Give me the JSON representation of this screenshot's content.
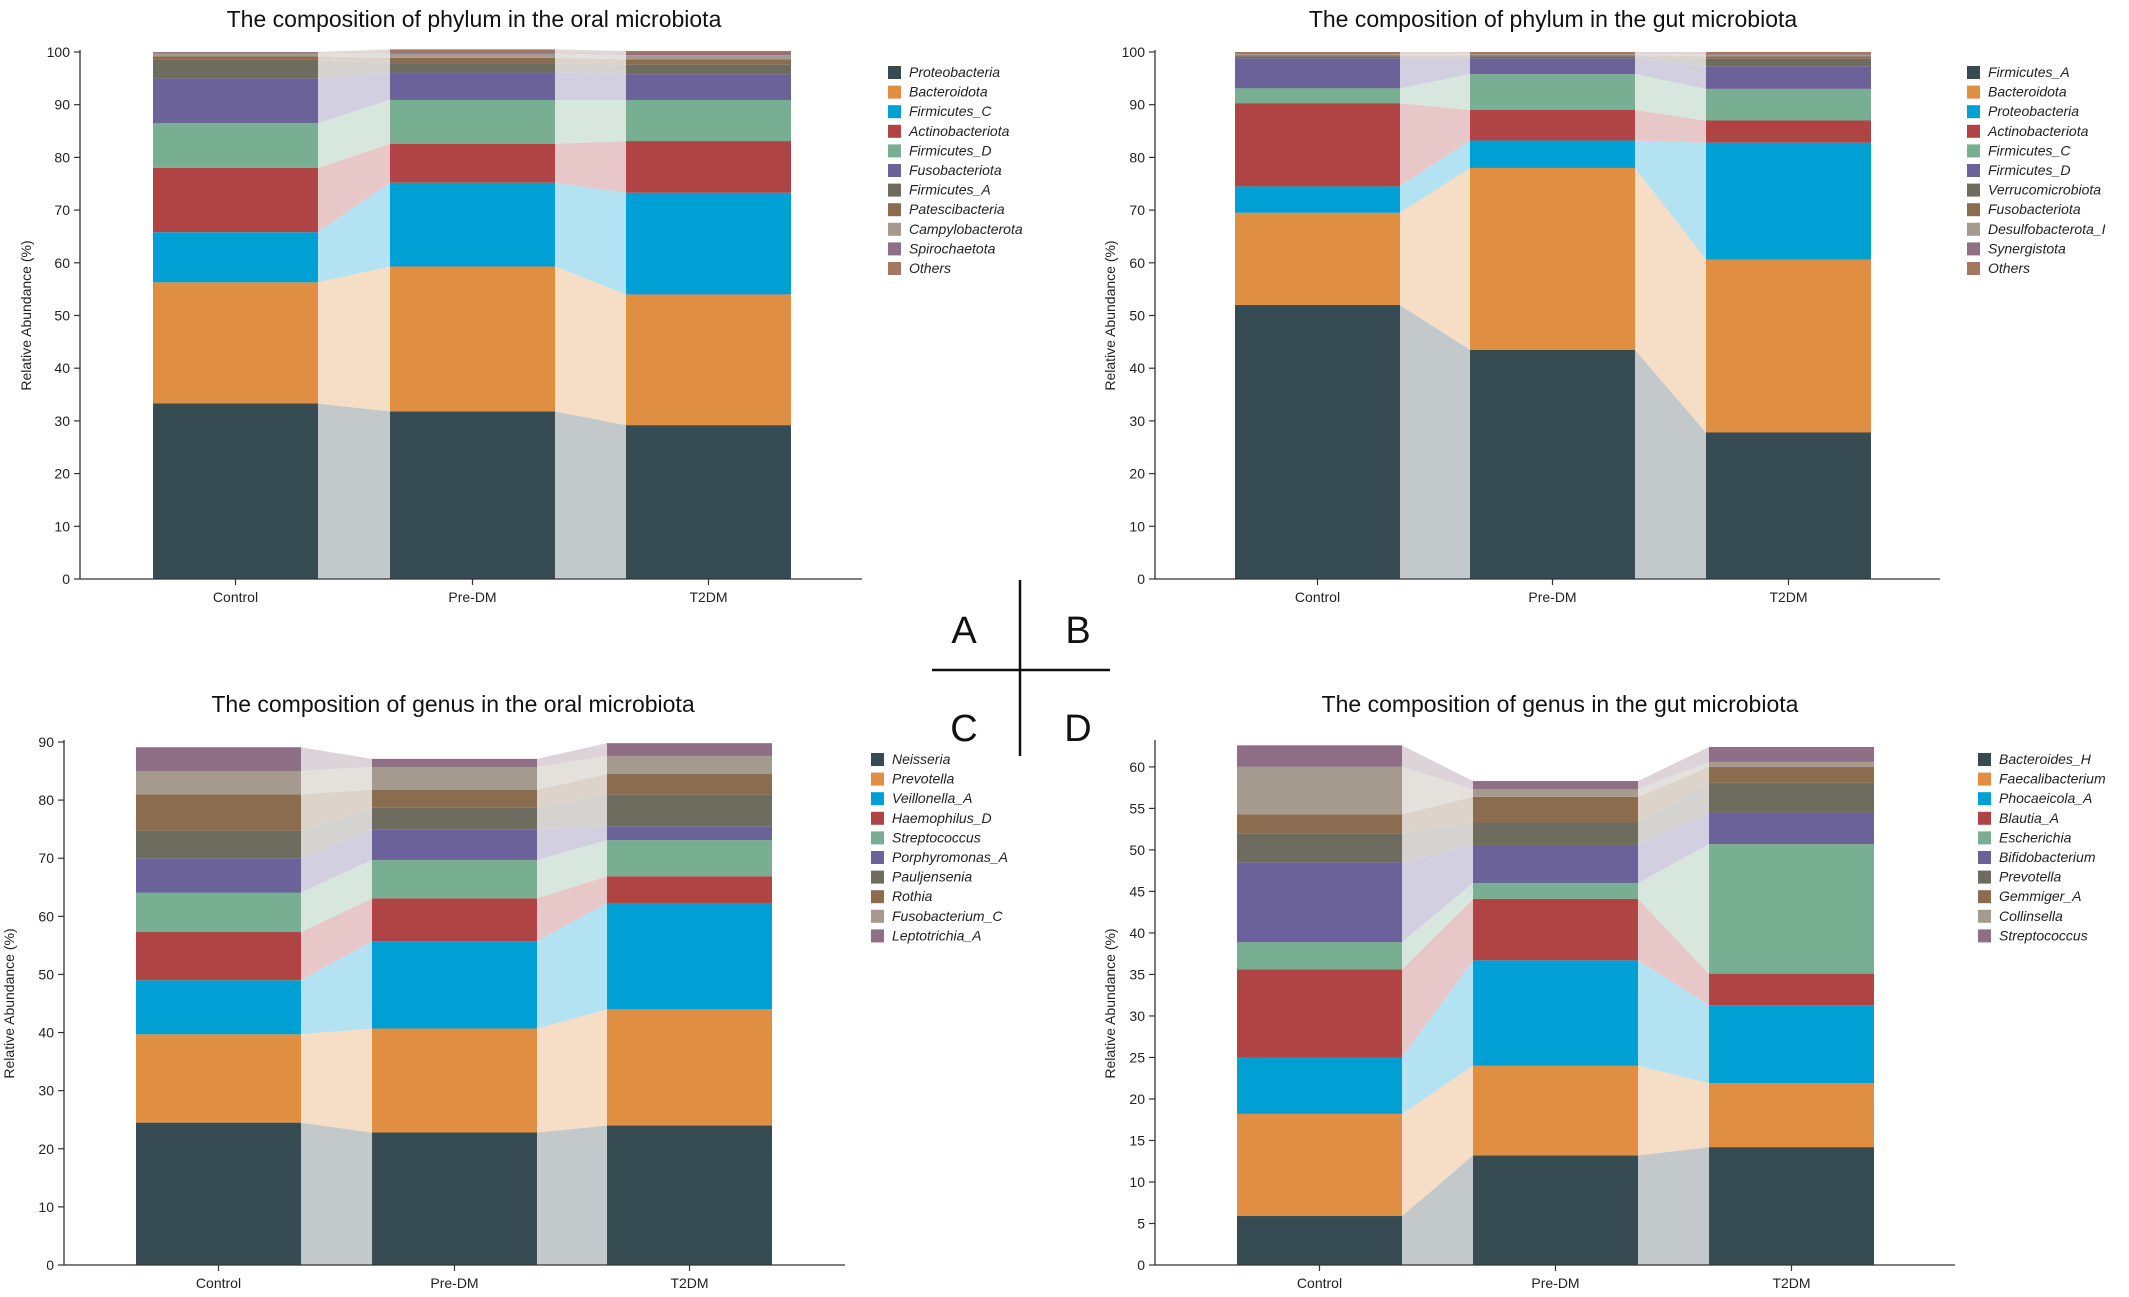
{
  "panel_labels": {
    "A": "A",
    "B": "B",
    "C": "C",
    "D": "D"
  },
  "chart_data": [
    {
      "id": "A",
      "type": "bar",
      "stacked": true,
      "title": "The composition of phylum in the oral microbiota",
      "xlabel": "",
      "ylabel": "Relative Abundance (%)",
      "categories": [
        "Control",
        "Pre-DM",
        "T2DM"
      ],
      "ylim": [
        0,
        100
      ],
      "yticks": [
        0,
        10,
        20,
        30,
        40,
        50,
        60,
        70,
        80,
        90,
        100
      ],
      "legend_position": "right",
      "series": [
        {
          "name": "Proteobacteria",
          "color": "#364b52",
          "values": [
            33.3,
            31.8,
            29.2
          ]
        },
        {
          "name": "Bacteroidota",
          "color": "#e08e41",
          "values": [
            23.0,
            27.5,
            24.8
          ]
        },
        {
          "name": "Firmicutes_C",
          "color": "#009fd4",
          "values": [
            9.5,
            15.9,
            19.3
          ]
        },
        {
          "name": "Actinobacteriota",
          "color": "#b04444",
          "values": [
            12.2,
            7.4,
            9.8
          ]
        },
        {
          "name": "Firmicutes_D",
          "color": "#78ae91",
          "values": [
            8.5,
            8.3,
            7.8
          ]
        },
        {
          "name": "Fusobacteriota",
          "color": "#6a6298",
          "values": [
            8.5,
            5.2,
            4.9
          ]
        },
        {
          "name": "Firmicutes_A",
          "color": "#6e6b5f",
          "values": [
            3.5,
            1.8,
            1.8
          ]
        },
        {
          "name": "Patescibacteria",
          "color": "#8b6c4e",
          "values": [
            0.7,
            1.0,
            1.0
          ]
        },
        {
          "name": "Campylobacterota",
          "color": "#a49a8e",
          "values": [
            0.5,
            0.8,
            0.8
          ]
        },
        {
          "name": "Spirochaetota",
          "color": "#8e6f85",
          "values": [
            0.2,
            0.4,
            0.5
          ]
        },
        {
          "name": "Others",
          "color": "#a5775f",
          "values": [
            0.1,
            0.4,
            0.3
          ]
        }
      ]
    },
    {
      "id": "B",
      "type": "bar",
      "stacked": true,
      "title": "The composition of phylum in the gut microbiota",
      "xlabel": "",
      "ylabel": "Relative Abundance (%)",
      "categories": [
        "Control",
        "Pre-DM",
        "T2DM"
      ],
      "ylim": [
        0,
        100
      ],
      "yticks": [
        0,
        10,
        20,
        30,
        40,
        50,
        60,
        70,
        80,
        90,
        100
      ],
      "legend_position": "right",
      "series": [
        {
          "name": "Firmicutes_A",
          "color": "#364b52",
          "values": [
            52.0,
            43.5,
            27.8
          ]
        },
        {
          "name": "Bacteroidota",
          "color": "#e08e41",
          "values": [
            17.5,
            34.5,
            32.8
          ]
        },
        {
          "name": "Proteobacteria",
          "color": "#009fd4",
          "values": [
            5.0,
            5.2,
            22.2
          ]
        },
        {
          "name": "Actinobacteriota",
          "color": "#b04444",
          "values": [
            15.8,
            5.8,
            4.2
          ]
        },
        {
          "name": "Firmicutes_C",
          "color": "#78ae91",
          "values": [
            2.8,
            6.8,
            6.0
          ]
        },
        {
          "name": "Firmicutes_D",
          "color": "#6a6298",
          "values": [
            5.7,
            3.0,
            4.3
          ]
        },
        {
          "name": "Verrucomicrobiota",
          "color": "#6e6b5f",
          "values": [
            0.4,
            0.4,
            1.4
          ]
        },
        {
          "name": "Fusobacteriota",
          "color": "#8b6c4e",
          "values": [
            0.2,
            0.2,
            0.5
          ]
        },
        {
          "name": "Desulfobacterota_I",
          "color": "#a49a8e",
          "values": [
            0.2,
            0.2,
            0.3
          ]
        },
        {
          "name": "Synergistota",
          "color": "#8e6f85",
          "values": [
            0.2,
            0.2,
            0.3
          ]
        },
        {
          "name": "Others",
          "color": "#a5775f",
          "values": [
            0.2,
            0.2,
            0.2
          ]
        }
      ]
    },
    {
      "id": "C",
      "type": "bar",
      "stacked": true,
      "title": "The composition of genus in the oral microbiota",
      "xlabel": "",
      "ylabel": "Relative Abundance (%)",
      "categories": [
        "Control",
        "Pre-DM",
        "T2DM"
      ],
      "ylim": [
        0,
        90
      ],
      "yticks": [
        0,
        10,
        20,
        30,
        40,
        50,
        60,
        70,
        80,
        90
      ],
      "legend_position": "right",
      "series": [
        {
          "name": "Neisseria",
          "color": "#364b52",
          "values": [
            24.5,
            22.8,
            24.0
          ]
        },
        {
          "name": "Prevotella",
          "color": "#e08e41",
          "values": [
            15.2,
            17.9,
            20.0
          ]
        },
        {
          "name": "Veillonella_A",
          "color": "#009fd4",
          "values": [
            9.3,
            15.0,
            18.3
          ]
        },
        {
          "name": "Haemophilus_D",
          "color": "#b04444",
          "values": [
            8.3,
            7.4,
            4.6
          ]
        },
        {
          "name": "Streptococcus",
          "color": "#78ae91",
          "values": [
            6.8,
            6.6,
            6.2
          ]
        },
        {
          "name": "Porphyromonas_A",
          "color": "#6a6298",
          "values": [
            5.9,
            5.3,
            2.4
          ]
        },
        {
          "name": "Pauljensenia",
          "color": "#6e6b5f",
          "values": [
            4.7,
            3.7,
            5.5
          ]
        },
        {
          "name": "Rothia",
          "color": "#8b6c4e",
          "values": [
            6.3,
            3.1,
            3.5
          ]
        },
        {
          "name": "Fusobacterium_C",
          "color": "#a49a8e",
          "values": [
            4.0,
            3.9,
            3.1
          ]
        },
        {
          "name": "Leptotrichia_A",
          "color": "#8e6f85",
          "values": [
            4.1,
            1.4,
            2.2
          ]
        }
      ]
    },
    {
      "id": "D",
      "type": "bar",
      "stacked": true,
      "title": "The composition of genus in the gut microbiota",
      "xlabel": "",
      "ylabel": "Relative Abundance (%)",
      "categories": [
        "Control",
        "Pre-DM",
        "T2DM"
      ],
      "ylim": [
        0,
        63
      ],
      "yticks": [
        0,
        5,
        10,
        15,
        20,
        25,
        30,
        35,
        40,
        45,
        50,
        55,
        60
      ],
      "legend_position": "right",
      "series": [
        {
          "name": "Bacteroides_H",
          "color": "#364b52",
          "values": [
            5.9,
            13.2,
            14.2
          ]
        },
        {
          "name": "Faecalibacterium",
          "color": "#e08e41",
          "values": [
            12.3,
            10.8,
            7.7
          ]
        },
        {
          "name": "Phocaeicola_A",
          "color": "#009fd4",
          "values": [
            6.8,
            12.7,
            9.4
          ]
        },
        {
          "name": "Blautia_A",
          "color": "#b04444",
          "values": [
            10.6,
            7.4,
            3.8
          ]
        },
        {
          "name": "Escherichia",
          "color": "#78ae91",
          "values": [
            3.3,
            1.9,
            15.6
          ]
        },
        {
          "name": "Bifidobacterium",
          "color": "#6a6298",
          "values": [
            9.6,
            4.6,
            3.8
          ]
        },
        {
          "name": "Prevotella",
          "color": "#6e6b5f",
          "values": [
            3.5,
            2.7,
            3.6
          ]
        },
        {
          "name": "Gemmiger_A",
          "color": "#8b6c4e",
          "values": [
            2.3,
            3.1,
            1.9
          ]
        },
        {
          "name": "Collinsella",
          "color": "#a49a8e",
          "values": [
            5.7,
            0.9,
            0.6
          ]
        },
        {
          "name": "Streptococcus",
          "color": "#8e6f85",
          "values": [
            2.6,
            1.0,
            1.8
          ]
        }
      ]
    }
  ]
}
